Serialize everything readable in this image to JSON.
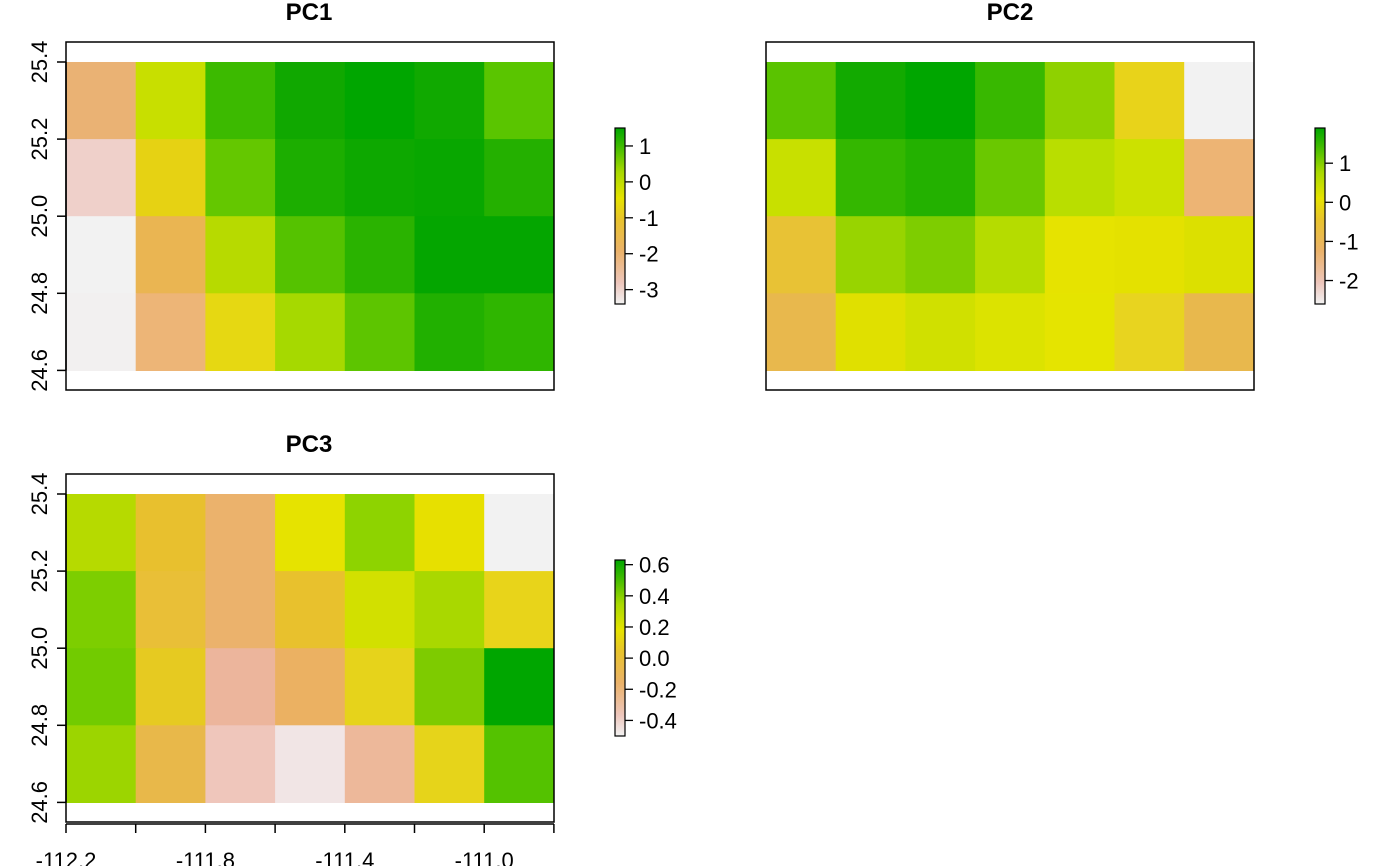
{
  "chart_data": [
    {
      "type": "heatmap",
      "title": "PC1",
      "x_ticks": [
        "-112.2",
        "-111.8",
        "-111.4",
        "-111.0"
      ],
      "y_ticks": [
        "24.6",
        "24.8",
        "25.0",
        "25.2",
        "25.4"
      ],
      "ylim": [
        24.55,
        25.45
      ],
      "legend": {
        "ticks": [
          "1",
          "0",
          "-1",
          "-2",
          "-3"
        ],
        "tick_values": [
          1,
          0,
          -1,
          -2,
          -3
        ],
        "range": [
          -3.4,
          1.5
        ]
      },
      "colors": [
        [
          "#EAB274",
          "#C8DF00",
          "#3CBA00",
          "#10A800",
          "#00A600",
          "#10A900",
          "#5AC500"
        ],
        [
          "#EFD0CA",
          "#E6D213",
          "#64C700",
          "#1CAE00",
          "#0DA800",
          "#08A700",
          "#24B000"
        ],
        [
          "#F2F2F2",
          "#EAB552",
          "#B7DA00",
          "#55C200",
          "#2AB300",
          "#04A600",
          "#04A600"
        ],
        [
          "#F2F0F0",
          "#EDB577",
          "#E6D812",
          "#A6D900",
          "#5DC500",
          "#21B000",
          "#2FB600"
        ]
      ]
    },
    {
      "type": "heatmap",
      "title": "PC2",
      "legend": {
        "ticks": [
          "1",
          "0",
          "-1",
          "-2"
        ],
        "tick_values": [
          1,
          0,
          -1,
          -2
        ],
        "range": [
          -2.6,
          1.9
        ]
      },
      "colors": [
        [
          "#5AC300",
          "#12AA00",
          "#00A600",
          "#38B800",
          "#8FD100",
          "#E8D31A",
          "#F2F2F2"
        ],
        [
          "#C8E000",
          "#34B700",
          "#23B100",
          "#6AC800",
          "#B9DE00",
          "#CCE100",
          "#EDB474"
        ],
        [
          "#E8C235",
          "#98D400",
          "#7ECD00",
          "#B5DC00",
          "#E6E300",
          "#E4E100",
          "#DCE000"
        ],
        [
          "#E8B84D",
          "#E0E000",
          "#D0E000",
          "#DCE300",
          "#E5E400",
          "#E8D41F",
          "#E8B84D"
        ]
      ]
    },
    {
      "type": "heatmap",
      "title": "PC3",
      "x_ticks": [
        "-112.2",
        "-111.8",
        "-111.4",
        "-111.0"
      ],
      "y_ticks": [
        "24.6",
        "24.8",
        "25.0",
        "25.2",
        "25.4"
      ],
      "legend": {
        "ticks": [
          "0.6",
          "0.4",
          "0.2",
          "0.0",
          "-0.2",
          "-0.4"
        ],
        "tick_values": [
          0.6,
          0.4,
          0.2,
          0.0,
          -0.2,
          -0.4
        ],
        "range": [
          -0.5,
          0.63
        ]
      },
      "colors": [
        [
          "#B6DA00",
          "#E8C02E",
          "#EBB26C",
          "#E6E300",
          "#8ED300",
          "#E7E000",
          "#F2F2F2"
        ],
        [
          "#7DCE00",
          "#E9BF37",
          "#EBB26C",
          "#E8C12D",
          "#D2E000",
          "#A9D800",
          "#E8D41A"
        ],
        [
          "#72CB00",
          "#E6CA21",
          "#ECB59C",
          "#EBB162",
          "#E6D31B",
          "#7ECB00",
          "#00A600"
        ],
        [
          "#9CD500",
          "#E8B84A",
          "#EFC6BB",
          "#F1E5E5",
          "#EDB89A",
          "#E6D41A",
          "#54C200"
        ]
      ]
    }
  ]
}
